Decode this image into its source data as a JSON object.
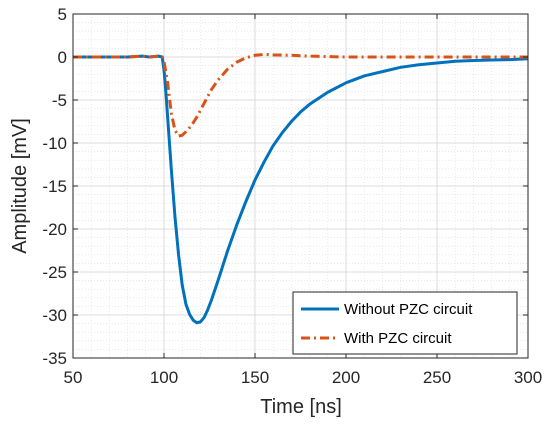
{
  "chart_data": {
    "type": "line",
    "xlabel": "Time [ns]",
    "ylabel": "Amplitude [mV]",
    "xlim": [
      50,
      300
    ],
    "ylim": [
      -35,
      5
    ],
    "xticks": [
      50,
      100,
      150,
      200,
      250,
      300
    ],
    "yticks": [
      5,
      0,
      -5,
      -10,
      -15,
      -20,
      -25,
      -30,
      -35
    ],
    "grid": true,
    "minor_grid": true,
    "legend_position": "bottom-right",
    "series": [
      {
        "name": "Without PZC circuit",
        "color": "#0072BD",
        "style": "solid",
        "x": [
          50,
          60,
          70,
          80,
          88,
          92,
          97,
          99,
          100,
          101,
          102,
          104,
          106,
          108,
          110,
          112,
          114,
          116,
          118,
          120,
          122,
          124,
          126,
          130,
          135,
          140,
          145,
          150,
          155,
          160,
          165,
          170,
          175,
          180,
          190,
          200,
          210,
          220,
          230,
          240,
          250,
          260,
          270,
          280,
          290,
          300
        ],
        "y": [
          0,
          0,
          0,
          0,
          0.1,
          0,
          0.1,
          0,
          -1.5,
          -4,
          -7,
          -13,
          -18.5,
          -23,
          -26.5,
          -28.7,
          -29.9,
          -30.6,
          -30.9,
          -30.8,
          -30.3,
          -29.4,
          -28.3,
          -25.8,
          -22.5,
          -19.5,
          -16.8,
          -14.3,
          -12.2,
          -10.3,
          -8.8,
          -7.5,
          -6.4,
          -5.5,
          -4.1,
          -3,
          -2.2,
          -1.7,
          -1.2,
          -0.9,
          -0.7,
          -0.5,
          -0.4,
          -0.35,
          -0.3,
          -0.2
        ]
      },
      {
        "name": "With PZC circuit",
        "color": "#D95319",
        "style": "dash-dot",
        "x": [
          50,
          60,
          70,
          80,
          88,
          92,
          97,
          99,
          100,
          102,
          104,
          106,
          108,
          110,
          112,
          115,
          118,
          120,
          123,
          126,
          130,
          135,
          140,
          145,
          150,
          155,
          160,
          170,
          180,
          190,
          200,
          220,
          240,
          260,
          280,
          300
        ],
        "y": [
          0,
          0,
          0,
          0,
          0.1,
          0,
          0.1,
          0,
          -0.5,
          -3,
          -6.5,
          -8.5,
          -9.2,
          -9.1,
          -8.7,
          -8,
          -7,
          -6.2,
          -5,
          -3.8,
          -2.6,
          -1.4,
          -0.6,
          -0.1,
          0.2,
          0.3,
          0.25,
          0.2,
          0.1,
          0.05,
          0,
          0,
          0,
          0,
          0,
          0
        ]
      }
    ]
  }
}
